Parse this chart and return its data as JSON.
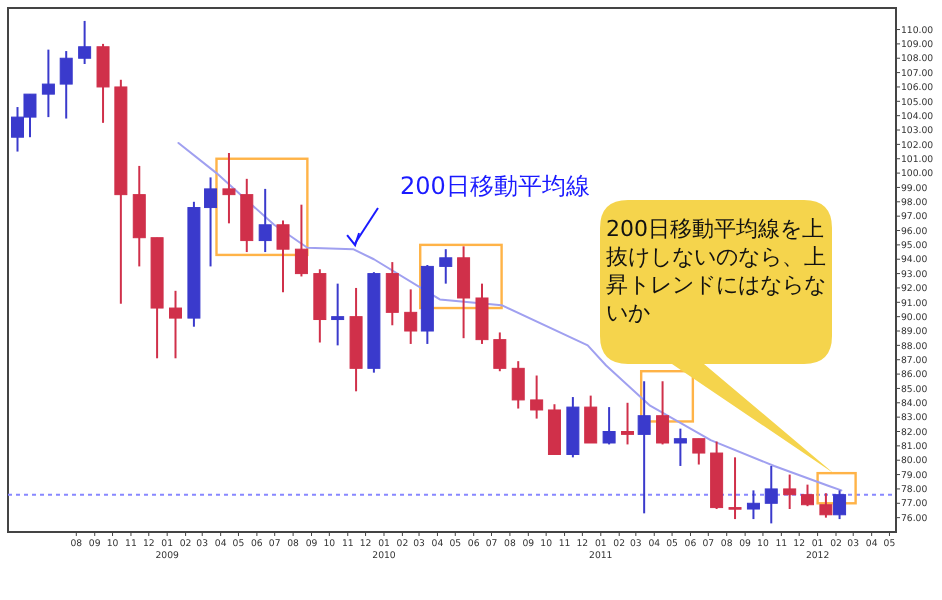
{
  "chart_data": {
    "type": "candlestick",
    "x": [
      "2008-04-24",
      "2008-05-15",
      "2008-06-15",
      "2008-07-15",
      "2008-08-15",
      "2008-09-15",
      "2008-10-15",
      "2008-11-15",
      "2008-12-15",
      "2009-01-15",
      "2009-02-15",
      "2009-03-15",
      "2009-04-15",
      "2009-05-15",
      "2009-06-15",
      "2009-07-15",
      "2009-08-15",
      "2009-09-15",
      "2009-10-15",
      "2009-11-15",
      "2009-12-15",
      "2010-01-15",
      "2010-02-15",
      "2010-03-15",
      "2010-04-15",
      "2010-05-15",
      "2010-06-15",
      "2010-07-15",
      "2010-08-15",
      "2010-09-15",
      "2010-10-15",
      "2010-11-15",
      "2010-12-15",
      "2011-01-15",
      "2011-02-15",
      "2011-03-15",
      "2011-04-15",
      "2011-05-15",
      "2011-06-15",
      "2011-07-15",
      "2011-08-15",
      "2011-09-15",
      "2011-10-15",
      "2011-11-15",
      "2011-12-15",
      "2012-01-15",
      "2012-02-07"
    ],
    "ohlc": [
      [
        102.5,
        104.6,
        101.5,
        103.9
      ],
      [
        103.9,
        105.5,
        102.5,
        105.5
      ],
      [
        105.5,
        108.6,
        103.9,
        106.2
      ],
      [
        106.2,
        108.5,
        103.8,
        108.0
      ],
      [
        108.0,
        110.6,
        107.6,
        108.8
      ],
      [
        108.8,
        109.0,
        103.5,
        106.0
      ],
      [
        106.0,
        106.5,
        90.9,
        98.5
      ],
      [
        98.5,
        100.5,
        93.5,
        95.5
      ],
      [
        95.5,
        95.5,
        87.1,
        90.6
      ],
      [
        90.6,
        91.8,
        87.1,
        89.9
      ],
      [
        89.9,
        98.0,
        89.3,
        97.6
      ],
      [
        97.6,
        99.7,
        93.5,
        98.9
      ],
      [
        98.9,
        101.4,
        96.5,
        98.5
      ],
      [
        98.5,
        99.6,
        94.5,
        95.3
      ],
      [
        95.3,
        98.9,
        94.5,
        96.4
      ],
      [
        96.4,
        96.7,
        91.7,
        94.7
      ],
      [
        94.7,
        97.8,
        92.8,
        93.0
      ],
      [
        93.0,
        93.3,
        88.2,
        89.8
      ],
      [
        89.8,
        92.3,
        88.0,
        90.0
      ],
      [
        90.0,
        92.0,
        84.8,
        86.4
      ],
      [
        86.4,
        93.1,
        86.1,
        93.0
      ],
      [
        93.0,
        93.8,
        89.4,
        90.3
      ],
      [
        90.3,
        91.9,
        88.1,
        89.0
      ],
      [
        89.0,
        93.6,
        88.1,
        93.5
      ],
      [
        93.5,
        94.7,
        92.3,
        94.1
      ],
      [
        94.1,
        94.9,
        88.5,
        91.3
      ],
      [
        91.3,
        92.3,
        88.1,
        88.4
      ],
      [
        88.4,
        88.9,
        86.2,
        86.4
      ],
      [
        86.4,
        86.9,
        83.6,
        84.2
      ],
      [
        84.2,
        85.9,
        82.9,
        83.5
      ],
      [
        83.5,
        83.9,
        80.4,
        80.4
      ],
      [
        80.4,
        84.4,
        80.2,
        83.7
      ],
      [
        83.7,
        84.5,
        81.2,
        81.2
      ],
      [
        81.2,
        83.7,
        81.1,
        82.0
      ],
      [
        82.0,
        84.0,
        81.1,
        81.8
      ],
      [
        81.8,
        85.5,
        76.3,
        83.1
      ],
      [
        83.1,
        85.5,
        81.1,
        81.2
      ],
      [
        81.2,
        82.2,
        79.6,
        81.5
      ],
      [
        81.5,
        81.5,
        79.7,
        80.5
      ],
      [
        80.5,
        81.3,
        76.6,
        76.7
      ],
      [
        76.7,
        80.2,
        75.9,
        76.6
      ],
      [
        76.6,
        77.9,
        75.9,
        77.0
      ],
      [
        77.0,
        79.6,
        75.6,
        78.0
      ],
      [
        78.0,
        79.0,
        76.6,
        77.6
      ],
      [
        77.6,
        78.3,
        76.8,
        76.9
      ],
      [
        76.9,
        77.7,
        76.0,
        76.2
      ],
      [
        76.2,
        77.9,
        75.9,
        77.6
      ]
    ],
    "series": [
      {
        "type": "line",
        "color": "#a0a0f0",
        "x": [
          "2009-01-20",
          "2009-03-25",
          "2009-06-30",
          "2009-08-25",
          "2009-11-10",
          "2009-12-15",
          "2010-04-05",
          "2010-07-18",
          "2010-12-10",
          "2011-01-10",
          "2011-03-25",
          "2011-07-05",
          "2011-10-20",
          "2012-01-20",
          "2012-02-10"
        ],
        "values": [
          102.1,
          100.0,
          96.4,
          94.8,
          94.7,
          94.0,
          91.2,
          90.8,
          88.0,
          86.6,
          83.8,
          81.4,
          79.6,
          78.2,
          77.9
        ]
      }
    ],
    "xlim": [
      "2008-04-08",
      "2012-05-12"
    ],
    "ylim": [
      75.0,
      111.5
    ],
    "xticks": [
      {
        "value": "2008-08",
        "label": "08"
      },
      {
        "value": "2008-09",
        "label": "09"
      },
      {
        "value": "2008-10",
        "label": "10"
      },
      {
        "value": "2008-11",
        "label": "11"
      },
      {
        "value": "2008-12",
        "label": "12"
      },
      {
        "value": "2009-01",
        "label": "01 2009"
      },
      {
        "value": "2009-02",
        "label": "02"
      },
      {
        "value": "2009-03",
        "label": "03"
      },
      {
        "value": "2009-04",
        "label": "04"
      },
      {
        "value": "2009-05",
        "label": "05"
      },
      {
        "value": "2009-06",
        "label": "06"
      },
      {
        "value": "2009-07",
        "label": "07"
      },
      {
        "value": "2009-08",
        "label": "08"
      },
      {
        "value": "2009-09",
        "label": "09"
      },
      {
        "value": "2009-10",
        "label": "10"
      },
      {
        "value": "2009-11",
        "label": "11"
      },
      {
        "value": "2009-12",
        "label": "12"
      },
      {
        "value": "2010-01",
        "label": "01 2010"
      },
      {
        "value": "2010-02",
        "label": "02"
      },
      {
        "value": "2010-03",
        "label": "03"
      },
      {
        "value": "2010-04",
        "label": "04"
      },
      {
        "value": "2010-05",
        "label": "05"
      },
      {
        "value": "2010-06",
        "label": "06"
      },
      {
        "value": "2010-07",
        "label": "07"
      },
      {
        "value": "2010-08",
        "label": "08"
      },
      {
        "value": "2010-09",
        "label": "09"
      },
      {
        "value": "2010-10",
        "label": "10"
      },
      {
        "value": "2010-11",
        "label": "11"
      },
      {
        "value": "2010-12",
        "label": "12"
      },
      {
        "value": "2011-01",
        "label": "01 2011"
      },
      {
        "value": "2011-02",
        "label": "02"
      },
      {
        "value": "2011-03",
        "label": "03"
      },
      {
        "value": "2011-04",
        "label": "04"
      },
      {
        "value": "2011-05",
        "label": "05"
      },
      {
        "value": "2011-06",
        "label": "06"
      },
      {
        "value": "2011-07",
        "label": "07"
      },
      {
        "value": "2011-08",
        "label": "08"
      },
      {
        "value": "2011-09",
        "label": "09"
      },
      {
        "value": "2011-10",
        "label": "10"
      },
      {
        "value": "2011-11",
        "label": "11"
      },
      {
        "value": "2011-12",
        "label": "12"
      },
      {
        "value": "2012-01",
        "label": "01 2012"
      },
      {
        "value": "2012-02",
        "label": "02"
      },
      {
        "value": "2012-03",
        "label": "03"
      },
      {
        "value": "2012-04",
        "label": "04"
      },
      {
        "value": "2012-05",
        "label": "05"
      }
    ],
    "yticks": [
      {
        "value": 76,
        "label": "76.00"
      },
      {
        "value": 77,
        "label": "77.00"
      },
      {
        "value": 78,
        "label": "78.00"
      },
      {
        "value": 79,
        "label": "79.00"
      },
      {
        "value": 80,
        "label": "80.00"
      },
      {
        "value": 81,
        "label": "81.00"
      },
      {
        "value": 82,
        "label": "82.00"
      },
      {
        "value": 83,
        "label": "83.00"
      },
      {
        "value": 84,
        "label": "84.00"
      },
      {
        "value": 85,
        "label": "85.00"
      },
      {
        "value": 86,
        "label": "86.00"
      },
      {
        "value": 87,
        "label": "87.00"
      },
      {
        "value": 88,
        "label": "88.00"
      },
      {
        "value": 89,
        "label": "89.00"
      },
      {
        "value": 90,
        "label": "90.00"
      },
      {
        "value": 91,
        "label": "91.00"
      },
      {
        "value": 92,
        "label": "92.00"
      },
      {
        "value": 93,
        "label": "93.00"
      },
      {
        "value": 94,
        "label": "94.00"
      },
      {
        "value": 95,
        "label": "95.00"
      },
      {
        "value": 96,
        "label": "96.00"
      },
      {
        "value": 97,
        "label": "97.00"
      },
      {
        "value": 98,
        "label": "98.00"
      },
      {
        "value": 99,
        "label": "99.00"
      },
      {
        "value": 100,
        "label": "100.00"
      },
      {
        "value": 101,
        "label": "101.00"
      },
      {
        "value": 102,
        "label": "102.00"
      },
      {
        "value": 103,
        "label": "103.00"
      },
      {
        "value": 104,
        "label": "104.00"
      },
      {
        "value": 105,
        "label": "105.00"
      },
      {
        "value": 106,
        "label": "106.00"
      },
      {
        "value": 107,
        "label": "107.00"
      },
      {
        "value": 108,
        "label": "108.00"
      },
      {
        "value": 109,
        "label": "109.00"
      },
      {
        "value": 110,
        "label": "110.00"
      }
    ],
    "ref_lines": [
      {
        "axis": "y",
        "value": 77.6,
        "color": "#8888ff",
        "line_style": "dotted"
      }
    ],
    "annotations": [
      {
        "text": "200日移動平均線",
        "x": "2009-11-10",
        "y": 94.7
      },
      "200日移動平均線を上抜けしないのなら、上昇トレンドにはならないか"
    ]
  }
}
